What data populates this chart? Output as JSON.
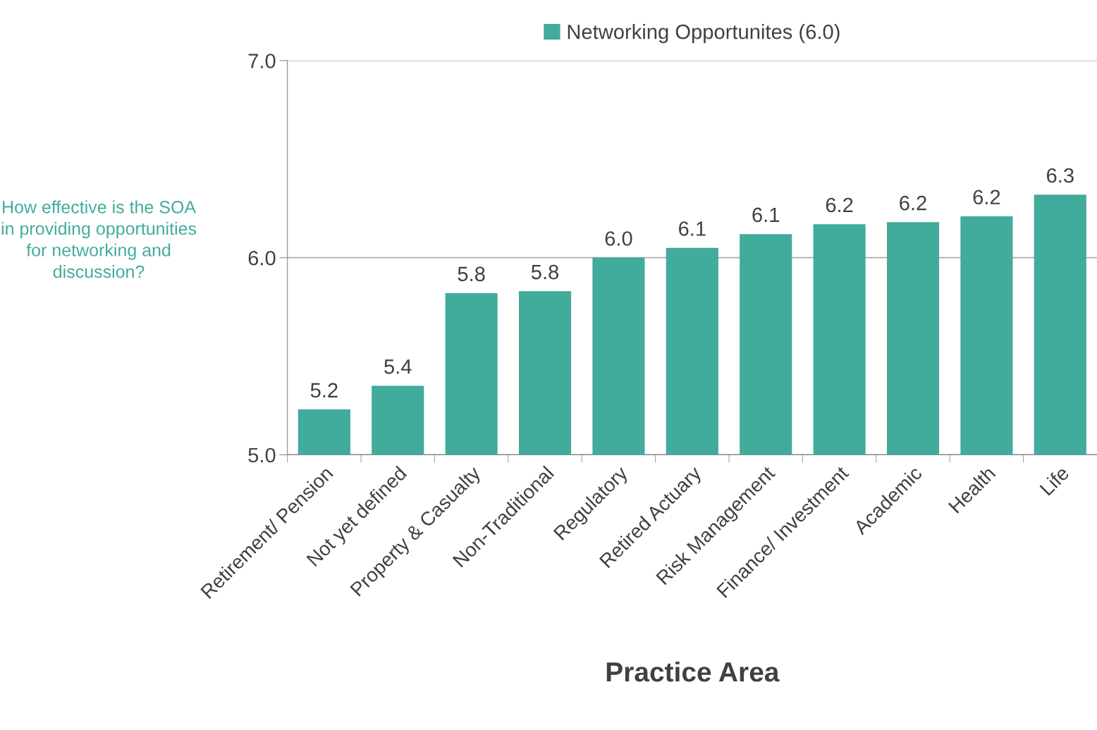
{
  "chart_data": {
    "type": "bar",
    "xlabel": "Practice Area",
    "ylabel": "How effective is the SOA in providing opportunities for networking and discussion?",
    "categories": [
      "Retirement/ Pension",
      "Not yet defined",
      "Property & Casualty",
      "Non-Traditional",
      "Regulatory",
      "Retired Actuary",
      "Risk Management",
      "Finance/ Investment",
      "Academic",
      "Health",
      "Life"
    ],
    "series": [
      {
        "name": "Networking Opportunites (6.0)",
        "color": "#41ab9c",
        "values": [
          5.23,
          5.35,
          5.82,
          5.83,
          6.0,
          6.05,
          6.12,
          6.17,
          6.18,
          6.21,
          6.32
        ],
        "value_labels": [
          "5.2",
          "5.4",
          "5.8",
          "5.8",
          "6.0",
          "6.1",
          "6.1",
          "6.2",
          "6.2",
          "6.2",
          "6.3"
        ]
      }
    ],
    "ylim": [
      5.0,
      7.0
    ],
    "yticks": [
      {
        "value": 5.0,
        "label": "5.0"
      },
      {
        "value": 6.0,
        "label": "6.0"
      },
      {
        "value": 7.0,
        "label": "7.0"
      }
    ],
    "grid": "y",
    "legend": "top"
  }
}
